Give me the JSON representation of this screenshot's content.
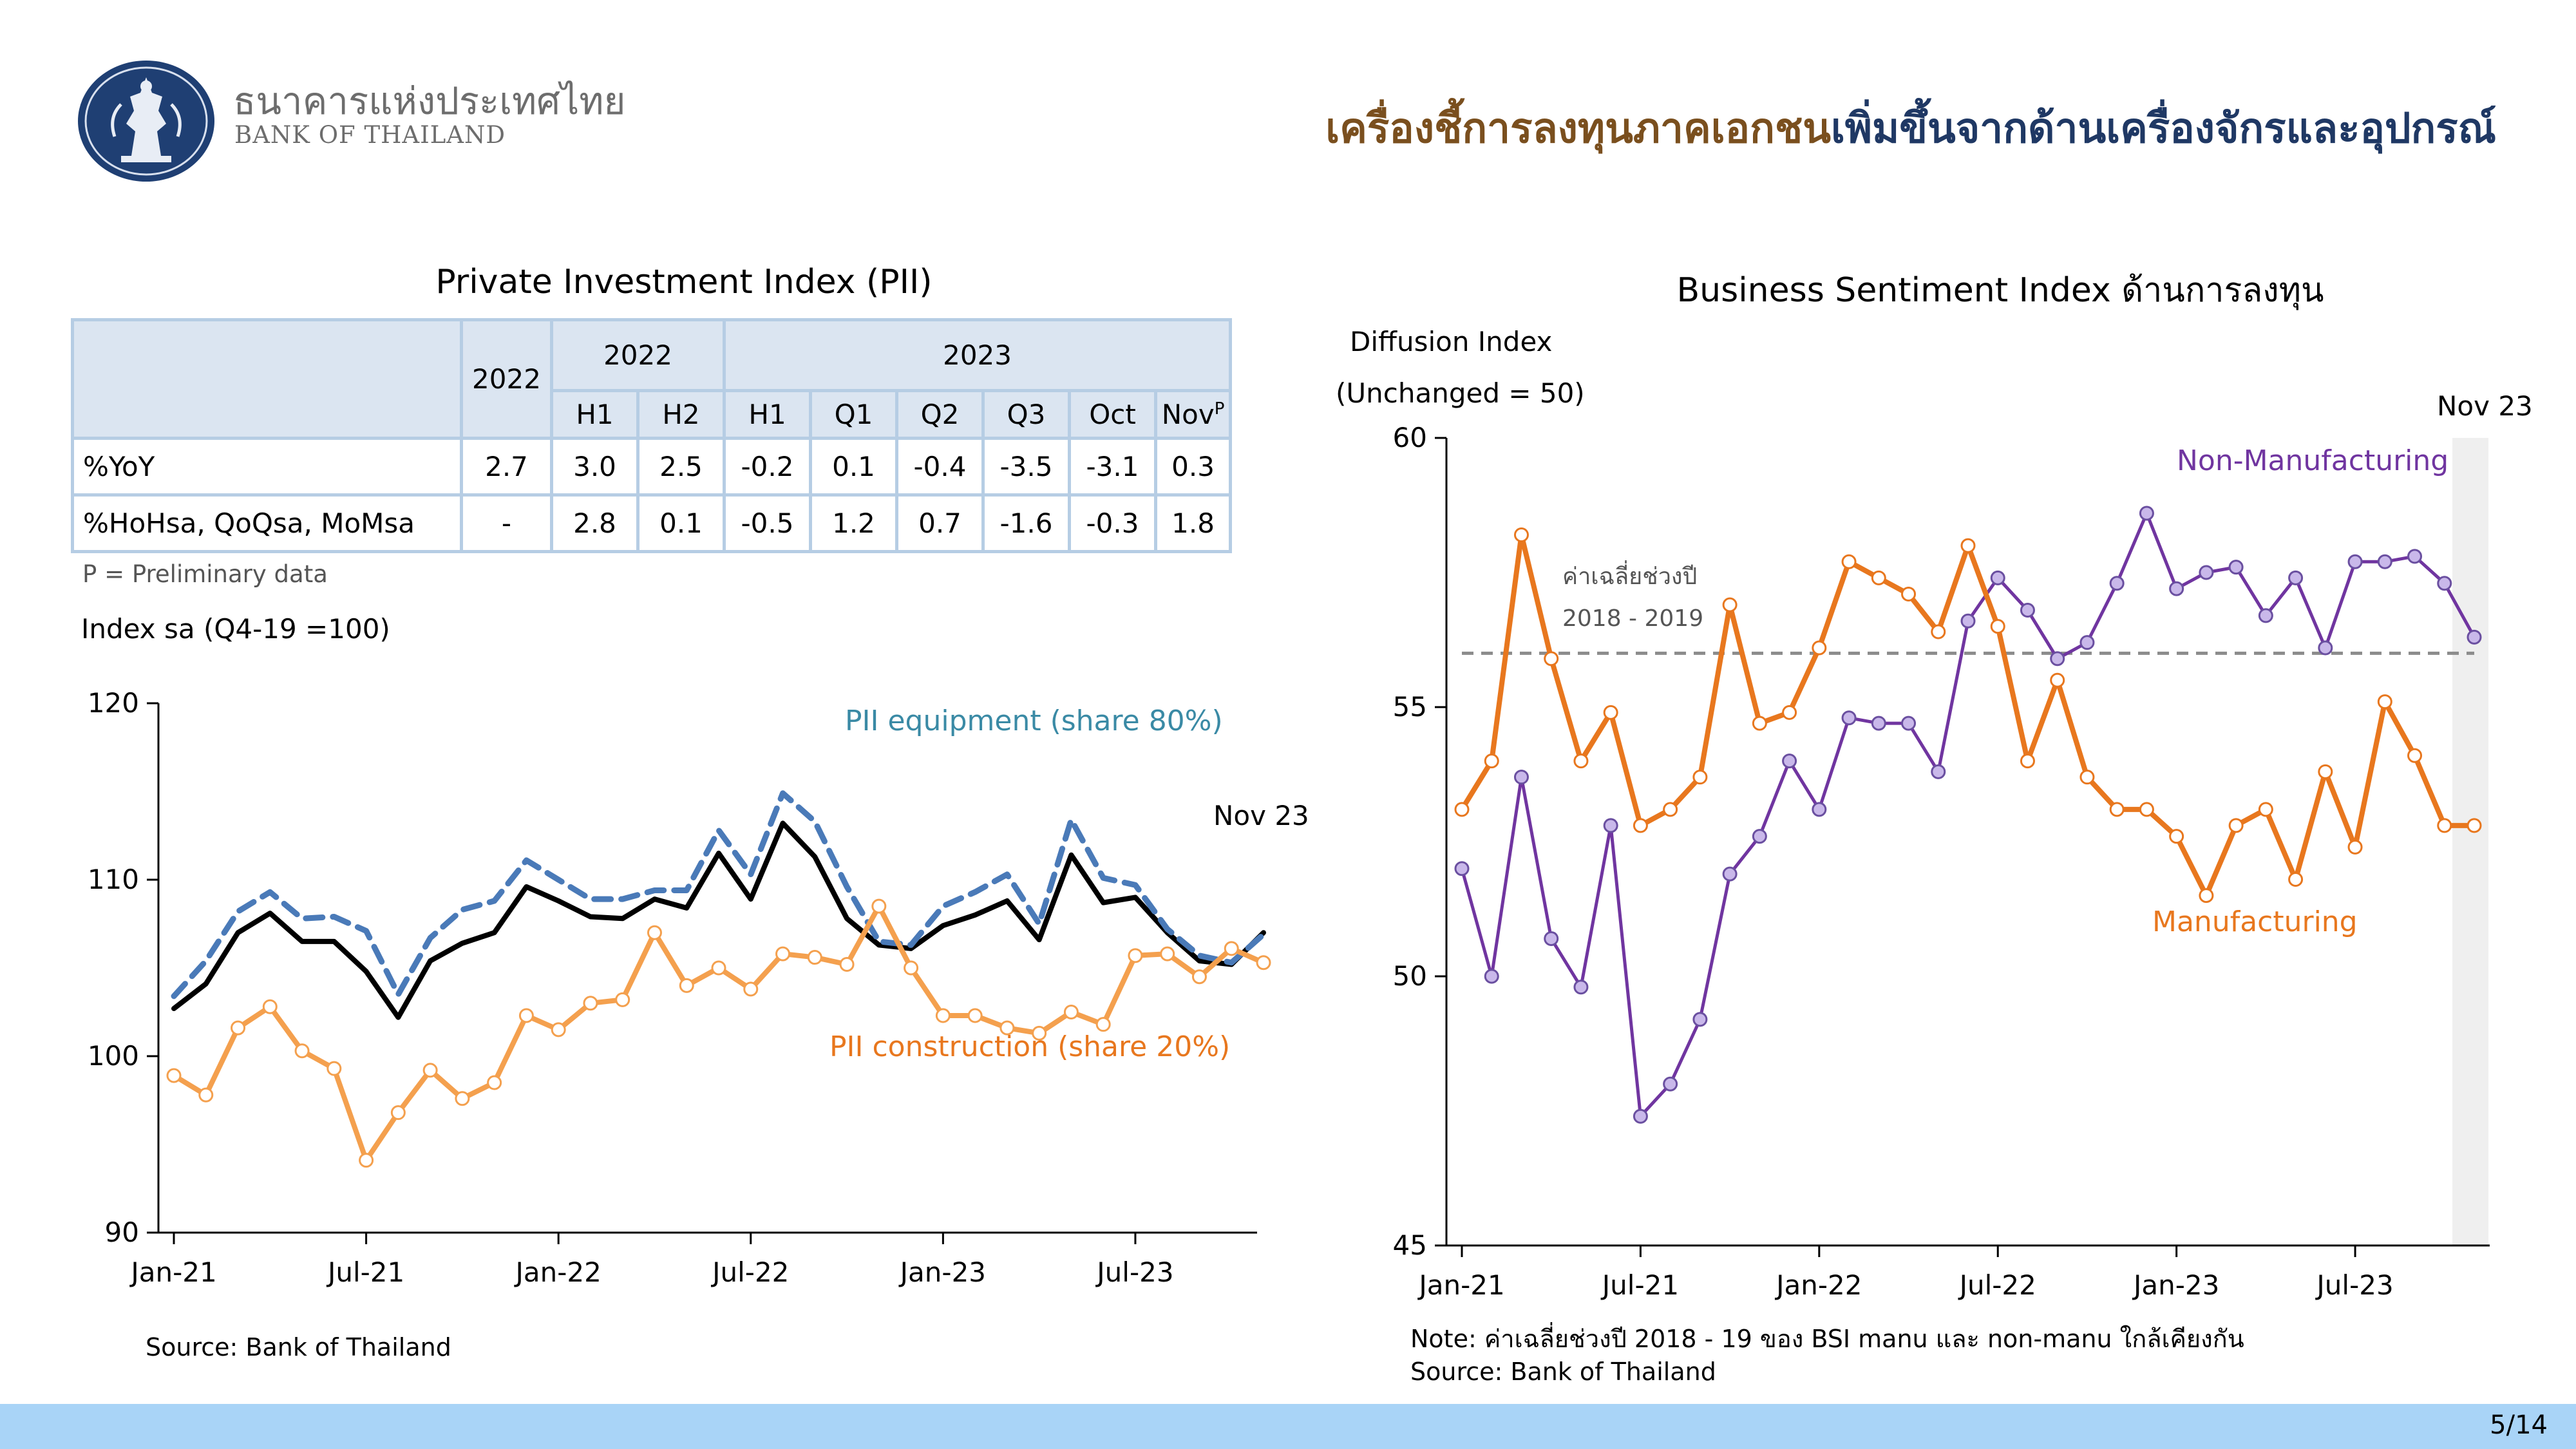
{
  "header": {
    "bank_name_th": "ธนาคารแห่งประเทศไทย",
    "bank_name_en": "BANK OF THAILAND",
    "title_part1": "เครื่องชี้การลงทุนภาคเอกชน",
    "title_part2": "เพิ่มขึ้นจากด้านเครื่องจักรและอุปกรณ์"
  },
  "table": {
    "title": "Private Investment Index (PII)",
    "year_2022": "2022",
    "group_2022": "2022",
    "group_2023": "2023",
    "sub_2022": [
      "H1",
      "H2"
    ],
    "sub_2023": [
      "H1",
      "Q1",
      "Q2",
      "Q3",
      "Oct",
      "Nov"
    ],
    "nov_sup": "P",
    "rows": [
      {
        "label": "%YoY",
        "values": [
          "2.7",
          "3.0",
          "2.5",
          "-0.2",
          "0.1",
          "-0.4",
          "-3.5",
          "-3.1",
          "0.3"
        ]
      },
      {
        "label": "%HoHsa, QoQsa, MoMsa",
        "values": [
          "-",
          "2.8",
          "0.1",
          "-0.5",
          "1.2",
          "0.7",
          "-1.6",
          "-0.3",
          "1.8"
        ]
      }
    ],
    "note": "P = Preliminary data"
  },
  "left_chart_labels": {
    "ylabel": "Index sa (Q4-19 =100)",
    "source": "Source: Bank of Thailand",
    "nov_label": "Nov 23",
    "equip_label": "PII equipment (share 80%)",
    "constr_label": "PII construction (share 20%)"
  },
  "right_chart_labels": {
    "title": "Business Sentiment Index ด้านการลงทุน",
    "ylabel1": "Diffusion Index",
    "ylabel2": "(Unchanged = 50)",
    "nov_label": "Nov 23",
    "nonmanu_label": "Non-Manufacturing",
    "manu_label": "Manufacturing",
    "avg_label1": "ค่าเฉลี่ยช่วงปี",
    "avg_label2": "2018 - 2019",
    "note": "Note: ค่าเฉลี่ยช่วงปี 2018 - 19 ของ BSI manu และ non-manu ใกล้เคียงกัน",
    "source": "Source: Bank of Thailand"
  },
  "page_number": "5/14",
  "colors": {
    "pii": "#000000",
    "equipment": "#4a7ab8",
    "construction": "#f4a04e",
    "manufacturing": "#e8771e",
    "non_manufacturing": "#7035a0",
    "nonmanu_marker": "#c9b8ea",
    "average_line": "#8c8c8c",
    "equip_text": "#3a8aa5",
    "constr_text": "#e8771e"
  },
  "chart_data": [
    {
      "type": "line",
      "title": "Private Investment Index (PII)",
      "ylabel": "Index sa (Q4-19 =100)",
      "ylim": [
        90,
        120
      ],
      "yticks": [
        90,
        100,
        110,
        120
      ],
      "x_tick_labels": [
        "Jan-21",
        "Jul-21",
        "Jan-22",
        "Jul-22",
        "Jan-23",
        "Jul-23"
      ],
      "x_tick_index": [
        0,
        6,
        12,
        18,
        24,
        30
      ],
      "series": [
        {
          "name": "PII",
          "values": [
            102.7,
            104.1,
            107.0,
            108.1,
            106.5,
            106.5,
            104.8,
            102.2,
            105.4,
            106.4,
            107.0,
            109.6,
            108.8,
            107.9,
            107.8,
            108.9,
            108.4,
            111.5,
            108.9,
            113.2,
            111.3,
            107.8,
            106.3,
            106.1,
            107.4,
            108.0,
            108.8,
            106.6,
            111.4,
            108.7,
            109.0,
            107.0,
            105.4,
            105.2,
            107.0
          ]
        },
        {
          "name": "PII equipment (share 80%)",
          "values": [
            103.4,
            105.4,
            108.2,
            109.3,
            107.8,
            107.9,
            107.1,
            103.5,
            106.7,
            108.3,
            108.8,
            111.1,
            110.0,
            108.9,
            108.9,
            109.4,
            109.4,
            112.8,
            110.3,
            114.9,
            113.3,
            109.6,
            106.5,
            106.3,
            108.5,
            109.3,
            110.3,
            107.5,
            113.4,
            110.1,
            109.7,
            107.2,
            105.7,
            105.3,
            106.9
          ]
        },
        {
          "name": "PII construction (share 20%)",
          "values": [
            98.9,
            97.8,
            101.6,
            102.8,
            100.3,
            99.3,
            94.1,
            96.8,
            99.2,
            97.6,
            98.5,
            102.3,
            101.5,
            103.0,
            103.2,
            107.0,
            104.0,
            105.0,
            103.8,
            105.8,
            105.6,
            105.2,
            108.5,
            105.0,
            102.3,
            102.3,
            101.6,
            101.3,
            102.5,
            101.8,
            105.7,
            105.8,
            104.5,
            106.1,
            105.3
          ]
        }
      ]
    },
    {
      "type": "line",
      "title": "Business Sentiment Index ด้านการลงทุน",
      "ylabel": "Diffusion Index (Unchanged = 50)",
      "ylim": [
        45,
        60
      ],
      "yticks": [
        45,
        50,
        55,
        60
      ],
      "x_tick_labels": [
        "Jan-21",
        "Jul-21",
        "Jan-22",
        "Jul-22",
        "Jan-23",
        "Jul-23"
      ],
      "x_tick_index": [
        0,
        6,
        12,
        18,
        24,
        30
      ],
      "average_2018_2019": 56.0,
      "highlight": "Nov 23",
      "series": [
        {
          "name": "Non-Manufacturing",
          "values": [
            52.0,
            50.0,
            53.7,
            50.7,
            49.8,
            52.8,
            47.4,
            48.0,
            49.2,
            51.9,
            52.6,
            54.0,
            53.1,
            54.8,
            54.7,
            54.7,
            53.8,
            56.6,
            57.4,
            56.8,
            55.9,
            56.2,
            57.3,
            58.6,
            57.2,
            57.5,
            57.6,
            56.7,
            57.4,
            56.1,
            57.7,
            57.7,
            57.8,
            57.3,
            56.3
          ]
        },
        {
          "name": "Manufacturing",
          "values": [
            53.1,
            54.0,
            58.2,
            55.9,
            54.0,
            54.9,
            52.8,
            53.1,
            53.7,
            56.9,
            54.7,
            54.9,
            56.1,
            57.7,
            57.4,
            57.1,
            56.4,
            58.0,
            56.5,
            54.0,
            55.5,
            53.7,
            53.1,
            53.1,
            52.6,
            51.5,
            52.8,
            53.1,
            51.8,
            53.8,
            52.4,
            55.1,
            54.1,
            52.8,
            52.8
          ]
        }
      ]
    }
  ]
}
